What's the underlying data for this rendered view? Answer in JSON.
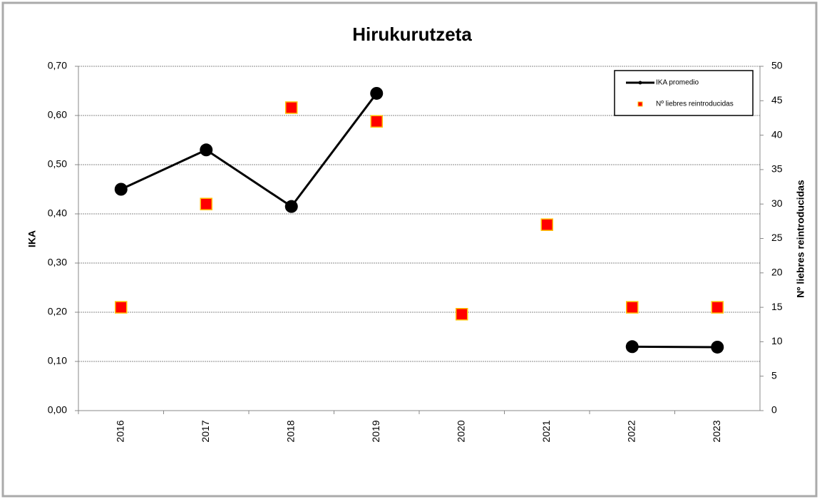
{
  "chart_data": {
    "type": "combo",
    "title": "Hirukurutzeta",
    "categories": [
      "2016",
      "2017",
      "2018",
      "2019",
      "2020",
      "2021",
      "2022",
      "2023"
    ],
    "ylabel": "IKA",
    "y2label": "Nº liebres reintroducidas",
    "series": [
      {
        "name": "IKA promedio",
        "type": "line",
        "color": "#000000",
        "values": [
          0.45,
          0.53,
          0.415,
          0.645,
          null,
          null,
          0.13,
          0.129
        ]
      },
      {
        "name": "Nº liebres reintroducidas",
        "type": "scatter",
        "axis": "y2",
        "color": "#ff0000",
        "edge": "#ffc000",
        "values": [
          15,
          30,
          44,
          42,
          14,
          27,
          15,
          15
        ]
      }
    ],
    "ylim": [
      0,
      0.7
    ],
    "yticks": [
      {
        "value": 0,
        "label": "0,00"
      },
      {
        "value": 0.1,
        "label": "0,10"
      },
      {
        "value": 0.2,
        "label": "0,20"
      },
      {
        "value": 0.3,
        "label": "0,30"
      },
      {
        "value": 0.4,
        "label": "0,40"
      },
      {
        "value": 0.5,
        "label": "0,50"
      },
      {
        "value": 0.6,
        "label": "0,60"
      },
      {
        "value": 0.7,
        "label": "0,70"
      }
    ],
    "y2lim": [
      0,
      50
    ],
    "y2ticks": [
      0,
      5,
      10,
      15,
      20,
      25,
      30,
      35,
      40,
      45,
      50
    ],
    "grid": true,
    "legend": "upper right"
  }
}
